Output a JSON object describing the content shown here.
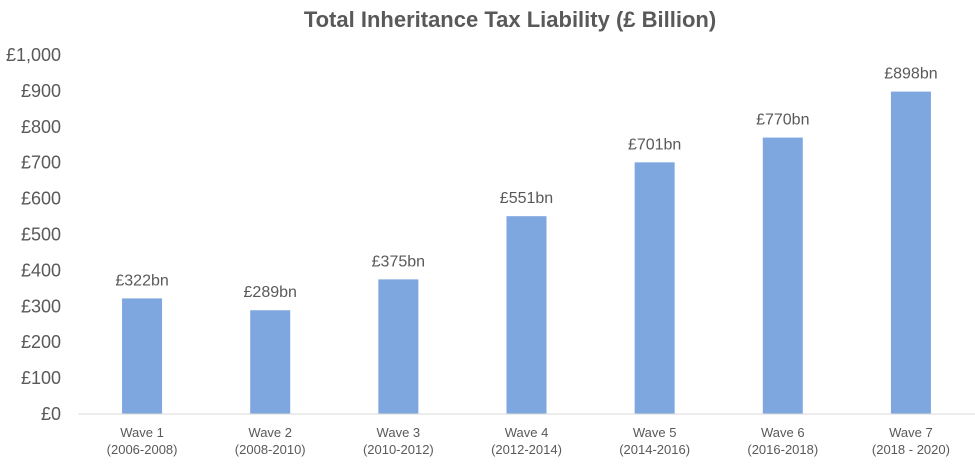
{
  "chart_data": {
    "type": "bar",
    "title": "Total Inheritance Tax Liability (£ Billion)",
    "categories": [
      [
        "Wave 1",
        "(2006-2008)"
      ],
      [
        "Wave 2",
        "(2008-2010)"
      ],
      [
        "Wave 3",
        "(2010-2012)"
      ],
      [
        "Wave 4",
        "(2012-2014)"
      ],
      [
        "Wave 5",
        "(2014-2016)"
      ],
      [
        "Wave 6",
        "(2016-2018)"
      ],
      [
        "Wave 7",
        "(2018 - 2020)"
      ]
    ],
    "values": [
      322,
      289,
      375,
      551,
      701,
      770,
      898
    ],
    "data_labels": [
      "£322bn",
      "£289bn",
      "£375bn",
      "£551bn",
      "£701bn",
      "£770bn",
      "£898bn"
    ],
    "yticks": [
      "£0",
      "£100",
      "£200",
      "£300",
      "£400",
      "£500",
      "£600",
      "£700",
      "£800",
      "£900",
      "£1,000"
    ],
    "ylim": [
      0,
      1000
    ],
    "ytick_step": 100,
    "grid": false,
    "legend": "none",
    "colors": {
      "bar": "#7ea6df",
      "text": "#595959",
      "axis": "#d9d9d9"
    }
  }
}
